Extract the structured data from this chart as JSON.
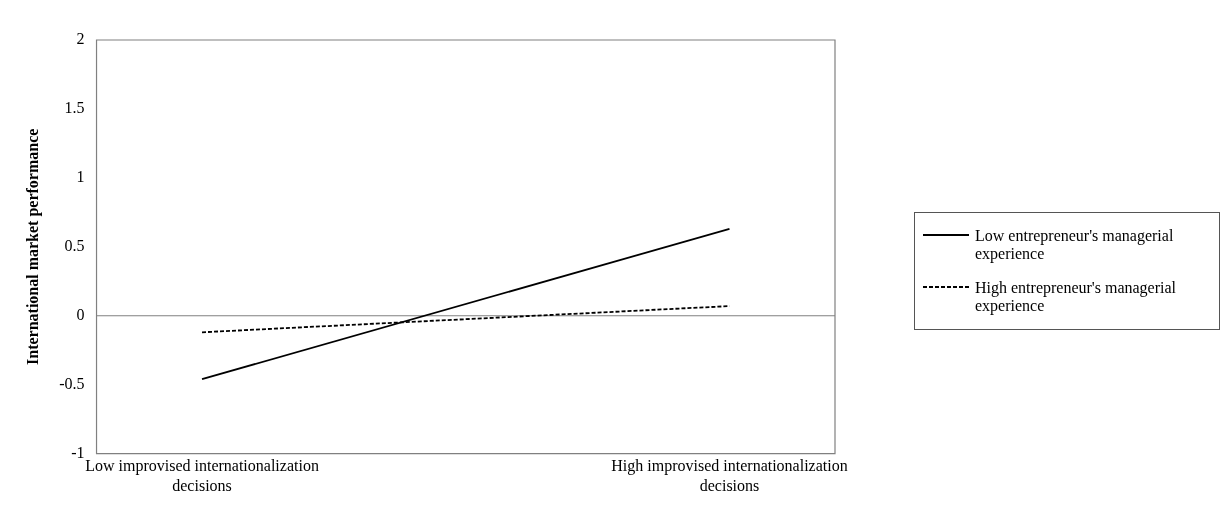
{
  "chart_data": {
    "type": "line",
    "ylabel": "International market performance",
    "categories": [
      "Low improvised internationalization decisions",
      "High improvised internationalization decisions"
    ],
    "series": [
      {
        "name": "Low entrepreneur's managerial experience",
        "color": "#000000",
        "values": [
          -0.46,
          0.63
        ],
        "line_style": "solid"
      },
      {
        "name": "High entrepreneur's managerial experience",
        "color": "#000000",
        "values": [
          -0.12,
          0.07
        ],
        "line_style": "dashed"
      }
    ],
    "ylim": [
      -1,
      2
    ],
    "yticks": [
      -1,
      -0.5,
      0,
      0.5,
      1,
      1.5,
      2
    ],
    "grid": false,
    "legend": "right",
    "marker": "none",
    "ref_lines": [
      {
        "axis": "y",
        "value": 0,
        "color": "#808080"
      }
    ]
  }
}
